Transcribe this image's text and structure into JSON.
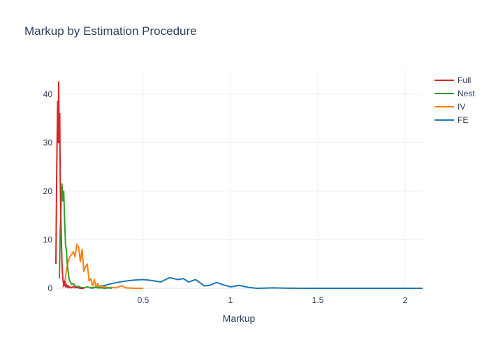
{
  "chart_data": {
    "type": "line",
    "title": "Markup by Estimation Procedure",
    "xlabel": "Markup",
    "ylabel": "",
    "xlim": [
      0.0,
      2.1
    ],
    "ylim": [
      -1.0,
      45.0
    ],
    "x_ticks": [
      0.5,
      1,
      1.5,
      2
    ],
    "x_tick_labels": [
      "0.5",
      "1",
      "1.5",
      "2"
    ],
    "y_ticks": [
      0,
      10,
      20,
      30,
      40
    ],
    "y_tick_labels": [
      "0",
      "10",
      "20",
      "30",
      "40"
    ],
    "grid": true,
    "legend_position": "top-right",
    "series": [
      {
        "name": "Full",
        "color": "#d62728",
        "x": [
          0.0,
          0.005,
          0.01,
          0.013,
          0.016,
          0.019,
          0.022,
          0.025,
          0.028,
          0.032,
          0.036,
          0.04,
          0.045,
          0.05,
          0.055,
          0.06,
          0.065,
          0.07,
          0.075,
          0.08,
          0.09,
          0.1,
          0.11,
          0.12,
          0.13,
          0.14,
          0.16
        ],
        "y": [
          5.0,
          25.0,
          38.5,
          30.0,
          42.5,
          30.0,
          36.0,
          22.0,
          15.0,
          9.0,
          4.0,
          2.0,
          0.5,
          1.5,
          0.3,
          0.8,
          0.2,
          0.6,
          0.1,
          0.3,
          0.1,
          0.4,
          0.1,
          0.2,
          0.1,
          0.0,
          0.0
        ]
      },
      {
        "name": "Nest",
        "color": "#2ca02c",
        "x": [
          0.02,
          0.025,
          0.03,
          0.035,
          0.04,
          0.045,
          0.05,
          0.055,
          0.06,
          0.065,
          0.07,
          0.075,
          0.08,
          0.09,
          0.1,
          0.11,
          0.12,
          0.13,
          0.14,
          0.16,
          0.18,
          0.2,
          0.22,
          0.24,
          0.26,
          0.28,
          0.3,
          0.32
        ],
        "y": [
          2.0,
          12.0,
          17.0,
          21.5,
          18.0,
          20.0,
          14.0,
          9.0,
          8.0,
          5.0,
          3.5,
          2.0,
          1.5,
          0.8,
          1.0,
          0.5,
          0.3,
          0.4,
          0.2,
          0.1,
          0.3,
          0.1,
          0.2,
          0.1,
          0.1,
          0.0,
          0.1,
          0.0
        ]
      },
      {
        "name": "IV",
        "color": "#ff7f0e",
        "x": [
          0.04,
          0.05,
          0.06,
          0.07,
          0.08,
          0.09,
          0.1,
          0.11,
          0.12,
          0.13,
          0.14,
          0.15,
          0.16,
          0.17,
          0.18,
          0.19,
          0.2,
          0.21,
          0.22,
          0.23,
          0.24,
          0.25,
          0.26,
          0.27,
          0.28,
          0.3,
          0.32,
          0.34,
          0.36,
          0.38,
          0.4,
          0.45,
          0.5
        ],
        "y": [
          0.2,
          1.0,
          3.5,
          5.5,
          6.5,
          7.0,
          7.5,
          6.5,
          9.0,
          8.5,
          5.5,
          8.0,
          3.5,
          4.5,
          5.0,
          1.5,
          2.0,
          0.5,
          1.8,
          0.2,
          1.0,
          0.3,
          0.6,
          0.1,
          0.3,
          0.1,
          0.2,
          0.1,
          0.3,
          0.5,
          0.1,
          0.0,
          0.0
        ]
      },
      {
        "name": "FE",
        "color": "#1f77b4",
        "x": [
          0.2,
          0.25,
          0.3,
          0.35,
          0.4,
          0.45,
          0.5,
          0.55,
          0.6,
          0.65,
          0.7,
          0.73,
          0.76,
          0.8,
          0.85,
          0.88,
          0.92,
          0.96,
          1.0,
          1.05,
          1.1,
          1.15,
          1.2,
          1.25,
          1.3,
          1.4,
          1.5,
          1.6,
          1.8,
          2.0,
          2.1
        ],
        "y": [
          0.0,
          0.3,
          0.8,
          1.2,
          1.5,
          1.7,
          1.8,
          1.6,
          1.3,
          2.2,
          1.8,
          2.0,
          1.3,
          1.8,
          0.5,
          0.6,
          1.2,
          0.7,
          0.3,
          0.6,
          0.2,
          0.0,
          0.05,
          0.1,
          0.05,
          0.0,
          0.0,
          0.0,
          0.0,
          0.0,
          0.0
        ]
      }
    ]
  }
}
